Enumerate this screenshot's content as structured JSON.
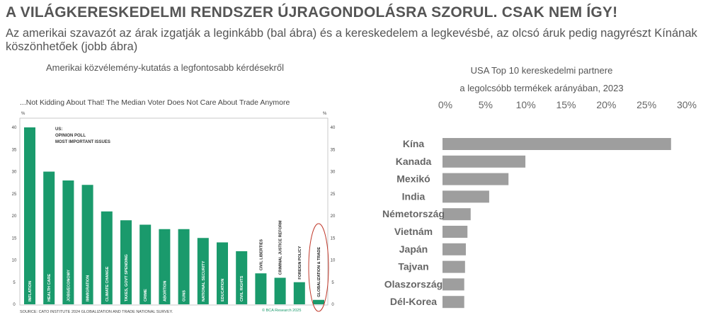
{
  "header": {
    "title": "A VILÁGKERESKEDELMI RENDSZER ÚJRAGONDOLÁSRA SZORUL. CSAK NEM ÍGY!",
    "subtitle": "Az amerikai szavazót az árak izgatják a leginkább (bal ábra) és a kereskedelem a legkevésbé, az olcsó áruk pedig nagyrészt Kínának köszönhetőek (jobb ábra)",
    "left_caption": "Amerikai közvélemény-kutatás a legfontosabb kérdésekről",
    "right_caption_1": "USA Top 10 kereskedelmi partnere",
    "right_caption_2": "a legolcsóbb termékek arányában, 2023"
  },
  "chart_data": [
    {
      "type": "bar",
      "title": "...Not Kidding About That! The Median Voter Does Not Care About Trade Anymore",
      "annotation": [
        "US:",
        "OPINION POLL",
        "MOST IMPORTANT ISSUES"
      ],
      "ylabel": "%",
      "ylim": [
        0,
        40
      ],
      "yticks": [
        0,
        5,
        10,
        15,
        20,
        25,
        30,
        35,
        40
      ],
      "categories": [
        "INFLATION",
        "HEALTH CARE",
        "JOBS/ECONOMY",
        "IMMIGRATION",
        "CLIMATE CHANGE",
        "TAXES, GOVT SPENDING",
        "CRIME",
        "ABORTION",
        "GUNS",
        "NATIONAL SECURITY",
        "EDUCATION",
        "CIVIL RIGHTS",
        "CIVIL LIBERTIES",
        "CRIMINAL JUSTICE REFORM",
        "FOREIGN POLICY",
        "GLOBALIZATION & TRADE"
      ],
      "values": [
        40,
        30,
        28,
        27,
        21,
        19,
        18,
        17,
        17,
        15,
        14,
        12,
        7,
        6,
        5,
        1
      ],
      "highlighted": "GLOBALIZATION & TRADE",
      "source": "SOURCE: CATO INSTITUTE 2024 GLOBALIZATION AND TRADE NATIONAL SURVEY.",
      "credit": "© BCA Research 2025",
      "colors": {
        "bar": "#1a9a6c",
        "highlight": "#c0392b"
      }
    },
    {
      "type": "bar",
      "orientation": "horizontal",
      "title": "USA Top 10 kereskedelmi partnere a legolcsóbb termékek arányában, 2023",
      "xlim": [
        0,
        30
      ],
      "xticks": [
        "0%",
        "5%",
        "10%",
        "15%",
        "20%",
        "25%",
        "30%"
      ],
      "categories": [
        "Kína",
        "Kanada",
        "Mexikó",
        "India",
        "Németország",
        "Vietnám",
        "Japán",
        "Tajvan",
        "Olaszország",
        "Dél-Korea"
      ],
      "values": [
        28.4,
        10.3,
        8.2,
        5.8,
        3.5,
        3.1,
        2.9,
        2.8,
        2.7,
        2.7
      ],
      "colors": {
        "bar": "#9e9e9e"
      }
    }
  ]
}
